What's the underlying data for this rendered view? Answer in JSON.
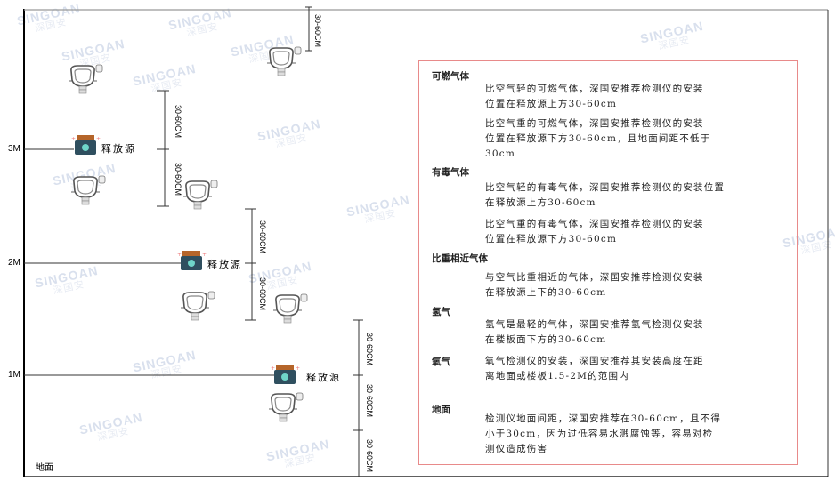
{
  "levels": {
    "m3": "3M",
    "m2": "2M",
    "m1": "1M",
    "ground": "地面"
  },
  "dimension_label": "30-60CM",
  "source_label": "释放源",
  "watermark": {
    "brand": "SINGOAN",
    "cn": "深国安"
  },
  "colors": {
    "panel_border": "#e88a8a",
    "source_body": "#2f4f5f",
    "source_cap": "#b5652a",
    "source_face": "#6fd6c9"
  },
  "panel": {
    "combustible": {
      "title": "可燃气体",
      "light": "比空气轻的可燃气体，深国安推荐检测仪的安装位置在释放源上方30-60cm",
      "heavy_1": "比空气重的可燃气体，深国安推荐检测仪的安装",
      "heavy_2": "位置在释放源下方30-60cm，且地面间距不低于",
      "heavy_3": "30cm",
      "light_1": "比空气轻的可燃气体，深国安推荐检测仪的安装",
      "light_2": "位置在释放源上方30-60cm"
    },
    "toxic": {
      "title": "有毒气体",
      "light_1": "比空气轻的有毒气体，深国安推荐检测仪的安装位置",
      "light_2": "在释放源上方30-60cm",
      "heavy_1": "比空气重的有毒气体，深国安推荐检测仪的安装",
      "heavy_2": "位置在释放源下方30-60cm"
    },
    "similar": {
      "title": "比重相近气体",
      "line_1": "与空气比重相近的气体，深国安推荐检测仪安装",
      "line_2": "在释放源上下的30-60cm"
    },
    "hydrogen": {
      "title": "氢气",
      "line_1": "氢气是最轻的气体，深国安推荐氢气检测仪安装",
      "line_2": "在楼板面下方的30-60cm"
    },
    "oxygen": {
      "title": "氧气",
      "line_1": "氧气检测仪的安装，深国安推荐其安装高度在距",
      "line_2": "离地面或楼板1.5-2M的范围内"
    },
    "ground": {
      "title": "地面",
      "line_1": "检测仪地面间距，深国安推荐在30-60cm，且不得",
      "line_2": "小于30cm，因为过低容易水溅腐蚀等，容易对检",
      "line_3": "测仪造成伤害"
    }
  }
}
